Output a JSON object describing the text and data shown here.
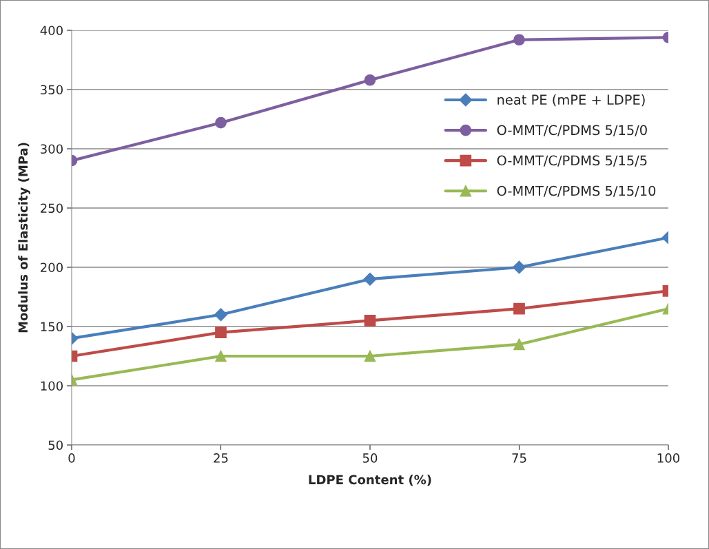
{
  "chart_data": {
    "type": "line",
    "xlabel": "LDPE Content (%)",
    "ylabel": "Modulus of Elasticity (MPa)",
    "x": [
      0,
      25,
      50,
      75,
      100
    ],
    "series": [
      {
        "name": "neat PE (mPE + LDPE)",
        "color": "#4a7ebb",
        "marker": "diamond",
        "values": [
          140,
          160,
          190,
          200,
          225
        ]
      },
      {
        "name": "O-MMT/C/PDMS 5/15/0",
        "color": "#7d5fa0",
        "marker": "circle",
        "values": [
          290,
          322,
          358,
          392,
          394
        ]
      },
      {
        "name": "O-MMT/C/PDMS 5/15/5",
        "color": "#be4b48",
        "marker": "square",
        "values": [
          125,
          145,
          155,
          165,
          180
        ]
      },
      {
        "name": "O-MMT/C/PDMS 5/15/10",
        "color": "#98b954",
        "marker": "triangle",
        "values": [
          105,
          125,
          125,
          135,
          165
        ]
      }
    ],
    "xlim": [
      0,
      100
    ],
    "xticks": [
      0,
      25,
      50,
      75,
      100
    ],
    "ylim": [
      50,
      400
    ],
    "yticks": [
      50,
      100,
      150,
      200,
      250,
      300,
      350,
      400
    ],
    "grid": "y",
    "legend": "right",
    "line_style": "solid"
  }
}
